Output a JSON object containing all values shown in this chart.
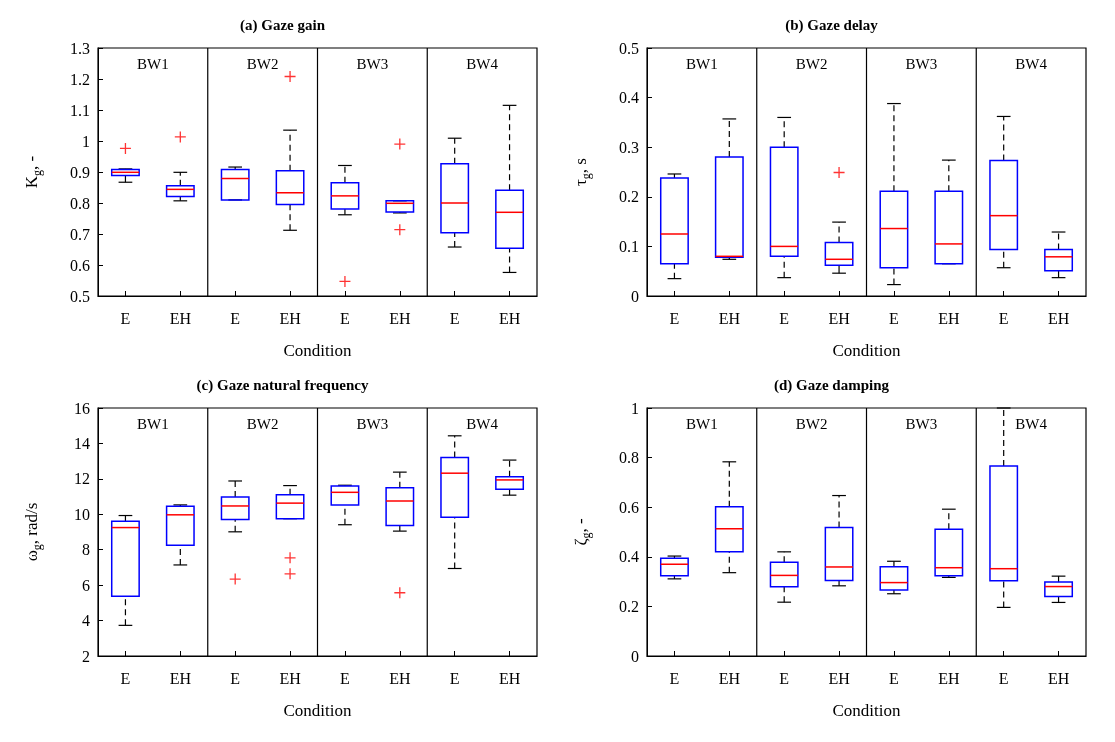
{
  "chart_data": [
    {
      "type": "box",
      "title": "(a) Gaze gain",
      "xlabel": "Condition",
      "ylabel": "K$_{g}$, -",
      "categories": [
        "E",
        "EH",
        "E",
        "EH",
        "E",
        "EH",
        "E",
        "EH"
      ],
      "annotations": [
        "BW1",
        "BW2",
        "BW3",
        "BW4"
      ],
      "ylim": [
        0.5,
        1.3
      ],
      "yticks": [
        0.5,
        0.6,
        0.7,
        0.8,
        0.9,
        1,
        1.1,
        1.2,
        1.3
      ],
      "grid": false,
      "marker": "cross",
      "line_style": "dashed",
      "series": [
        {
          "color": "#0000ff",
          "boxes": [
            {
              "low": 0.867,
              "q1": 0.889,
              "median": 0.899,
              "q3": 0.908,
              "high": 0.91,
              "outliers": [
                0.976
              ]
            },
            {
              "low": 0.807,
              "q1": 0.821,
              "median": 0.844,
              "q3": 0.856,
              "high": 0.899,
              "outliers": [
                1.013
              ]
            },
            {
              "low": 0.81,
              "q1": 0.81,
              "median": 0.879,
              "q3": 0.908,
              "high": 0.916
            },
            {
              "low": 0.712,
              "q1": 0.795,
              "median": 0.833,
              "q3": 0.904,
              "high": 1.035,
              "outliers": [
                1.208
              ]
            },
            {
              "low": 0.762,
              "q1": 0.781,
              "median": 0.823,
              "q3": 0.865,
              "high": 0.921,
              "outliers": [
                0.547
              ]
            },
            {
              "low": 0.768,
              "q1": 0.771,
              "median": 0.799,
              "q3": 0.807,
              "high": 0.807,
              "outliers": [
                0.99,
                0.714
              ]
            },
            {
              "low": 0.658,
              "q1": 0.704,
              "median": 0.8,
              "q3": 0.927,
              "high": 1.009
            },
            {
              "low": 0.576,
              "q1": 0.654,
              "median": 0.77,
              "q3": 0.841,
              "high": 1.115
            }
          ]
        }
      ]
    },
    {
      "type": "box",
      "title": "(b) Gaze delay",
      "xlabel": "Condition",
      "ylabel": "τ$_{g}$, s",
      "categories": [
        "E",
        "EH",
        "E",
        "EH",
        "E",
        "EH",
        "E",
        "EH"
      ],
      "annotations": [
        "BW1",
        "BW2",
        "BW3",
        "BW4"
      ],
      "ylim": [
        0,
        0.5
      ],
      "yticks": [
        0,
        0.1,
        0.2,
        0.3,
        0.4,
        0.5
      ],
      "grid": false,
      "marker": "cross",
      "line_style": "dashed",
      "series": [
        {
          "color": "#0000ff",
          "boxes": [
            {
              "low": 0.035,
              "q1": 0.065,
              "median": 0.125,
              "q3": 0.238,
              "high": 0.246
            },
            {
              "low": 0.074,
              "q1": 0.078,
              "median": 0.08,
              "q3": 0.28,
              "high": 0.357
            },
            {
              "low": 0.037,
              "q1": 0.08,
              "median": 0.1,
              "q3": 0.3,
              "high": 0.36
            },
            {
              "low": 0.046,
              "q1": 0.062,
              "median": 0.074,
              "q3": 0.108,
              "high": 0.149,
              "outliers": [
                0.249
              ]
            },
            {
              "low": 0.023,
              "q1": 0.057,
              "median": 0.136,
              "q3": 0.211,
              "high": 0.388
            },
            {
              "low": 0.065,
              "q1": 0.065,
              "median": 0.105,
              "q3": 0.211,
              "high": 0.274
            },
            {
              "low": 0.057,
              "q1": 0.094,
              "median": 0.162,
              "q3": 0.273,
              "high": 0.362
            },
            {
              "low": 0.037,
              "q1": 0.051,
              "median": 0.079,
              "q3": 0.094,
              "high": 0.129
            }
          ]
        }
      ]
    },
    {
      "type": "box",
      "title": "(c) Gaze natural frequency",
      "xlabel": "Condition",
      "ylabel": "ω$_{g}$, rad/s",
      "categories": [
        "E",
        "EH",
        "E",
        "EH",
        "E",
        "EH",
        "E",
        "EH"
      ],
      "annotations": [
        "BW1",
        "BW2",
        "BW3",
        "BW4"
      ],
      "ylim": [
        2,
        16
      ],
      "yticks": [
        2,
        4,
        6,
        8,
        10,
        12,
        14,
        16
      ],
      "grid": false,
      "marker": "cross",
      "line_style": "dashed",
      "series": [
        {
          "color": "#0000ff",
          "boxes": [
            {
              "low": 3.73,
              "q1": 5.37,
              "median": 9.25,
              "q3": 9.61,
              "high": 9.93
            },
            {
              "low": 7.14,
              "q1": 8.25,
              "median": 9.97,
              "q3": 10.45,
              "high": 10.53
            },
            {
              "low": 9.01,
              "q1": 9.71,
              "median": 10.47,
              "q3": 10.98,
              "high": 11.88,
              "outliers": [
                6.34
              ]
            },
            {
              "low": 9.75,
              "q1": 9.75,
              "median": 10.63,
              "q3": 11.1,
              "high": 11.62,
              "outliers": [
                7.54,
                6.64
              ]
            },
            {
              "low": 9.41,
              "q1": 10.53,
              "median": 11.24,
              "q3": 11.6,
              "high": 11.64
            },
            {
              "low": 9.05,
              "q1": 9.37,
              "median": 10.75,
              "q3": 11.5,
              "high": 12.38,
              "outliers": [
                5.57
              ]
            },
            {
              "low": 6.94,
              "q1": 9.83,
              "median": 12.32,
              "q3": 13.21,
              "high": 14.43
            },
            {
              "low": 11.08,
              "q1": 11.42,
              "median": 11.94,
              "q3": 12.12,
              "high": 13.06
            }
          ]
        }
      ]
    },
    {
      "type": "box",
      "title": "(d) Gaze damping",
      "xlabel": "Condition",
      "ylabel": "ζ$_{g}$, -",
      "categories": [
        "E",
        "EH",
        "E",
        "EH",
        "E",
        "EH",
        "E",
        "EH"
      ],
      "annotations": [
        "BW1",
        "BW2",
        "BW3",
        "BW4"
      ],
      "ylim": [
        0,
        1
      ],
      "yticks": [
        0,
        0.2,
        0.4,
        0.6,
        0.8,
        1
      ],
      "grid": false,
      "line_style": "dashed",
      "series": [
        {
          "color": "#0000ff",
          "boxes": [
            {
              "low": 0.311,
              "q1": 0.324,
              "median": 0.37,
              "q3": 0.394,
              "high": 0.403
            },
            {
              "low": 0.336,
              "q1": 0.42,
              "median": 0.513,
              "q3": 0.602,
              "high": 0.783
            },
            {
              "low": 0.217,
              "q1": 0.279,
              "median": 0.325,
              "q3": 0.378,
              "high": 0.42
            },
            {
              "low": 0.283,
              "q1": 0.304,
              "median": 0.359,
              "q3": 0.518,
              "high": 0.647
            },
            {
              "low": 0.251,
              "q1": 0.266,
              "median": 0.296,
              "q3": 0.36,
              "high": 0.382
            },
            {
              "low": 0.317,
              "q1": 0.324,
              "median": 0.356,
              "q3": 0.511,
              "high": 0.592
            },
            {
              "low": 0.196,
              "q1": 0.303,
              "median": 0.352,
              "q3": 0.766,
              "high": 1
            },
            {
              "low": 0.216,
              "q1": 0.24,
              "median": 0.28,
              "q3": 0.298,
              "high": 0.322
            }
          ]
        }
      ]
    }
  ]
}
